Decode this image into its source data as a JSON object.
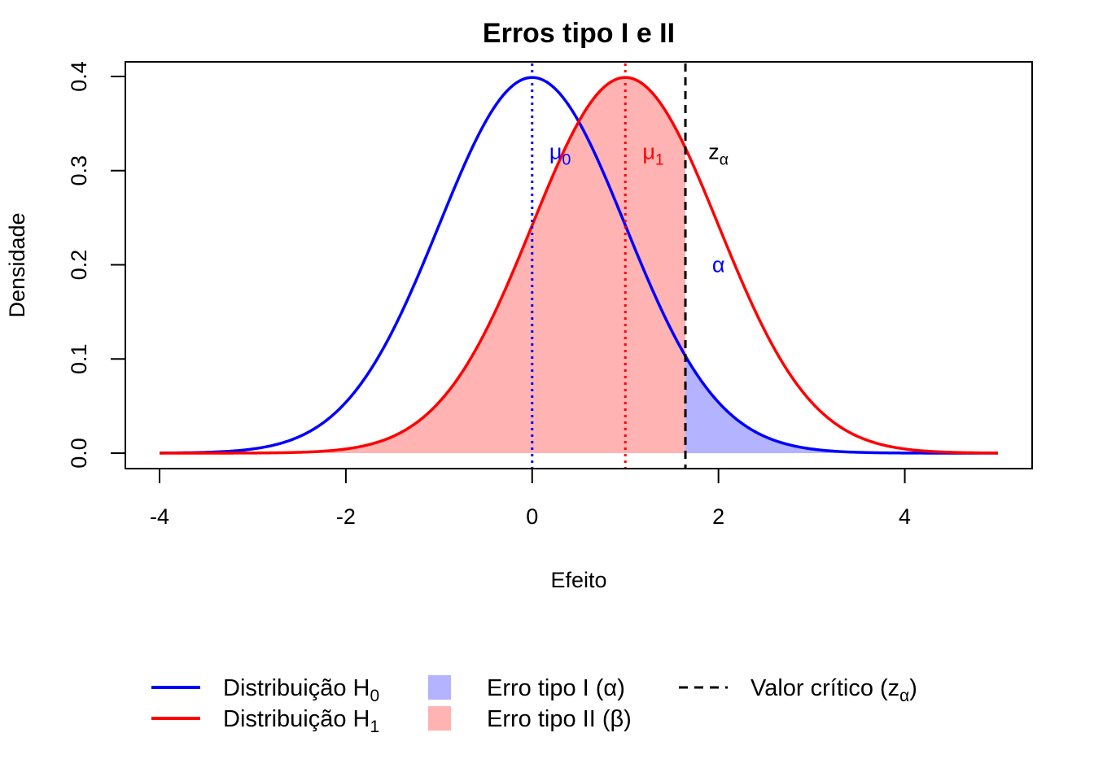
{
  "chart_data": {
    "type": "line",
    "title": "Erros tipo I e II",
    "xlabel": "Efeito",
    "ylabel": "Densidade",
    "xlim": [
      -4,
      5
    ],
    "ylim": [
      0,
      0.4
    ],
    "x_ticks": [
      {
        "value": -4,
        "label": "-4"
      },
      {
        "value": -2,
        "label": "-2"
      },
      {
        "value": 0,
        "label": "0"
      },
      {
        "value": 2,
        "label": "2"
      },
      {
        "value": 4,
        "label": "4"
      }
    ],
    "y_ticks": [
      {
        "value": 0.0,
        "label": "0.0"
      },
      {
        "value": 0.1,
        "label": "0.1"
      },
      {
        "value": 0.2,
        "label": "0.2"
      },
      {
        "value": 0.3,
        "label": "0.3"
      },
      {
        "value": 0.4,
        "label": "0.4"
      }
    ],
    "series": [
      {
        "name": "Distribuição H",
        "subscript": "0",
        "distribution": "normal",
        "mean": 0,
        "sd": 1,
        "color": "#0000ff"
      },
      {
        "name": "Distribuição H",
        "subscript": "1",
        "distribution": "normal",
        "mean": 1,
        "sd": 1,
        "color": "#ff0000"
      }
    ],
    "critical_value": 1.645,
    "shaded_regions": [
      {
        "name": "Erro tipo I (α)",
        "under": "H0",
        "from": 1.645,
        "to": 5,
        "color": "#b3b3ff"
      },
      {
        "name": "Erro tipo II (β)",
        "under": "H1",
        "from": -4,
        "to": 1.645,
        "color": "#ffb3b3"
      }
    ],
    "vertical_lines": [
      {
        "x": 0,
        "style": "dotted",
        "color": "#0000ff"
      },
      {
        "x": 1,
        "style": "dotted",
        "color": "#ff0000"
      },
      {
        "x": 1.645,
        "style": "dashed",
        "color": "#000000"
      }
    ],
    "annotations": [
      {
        "text": "μ",
        "sub": "0",
        "x": 0.3,
        "y": 0.32,
        "color": "#0000ff"
      },
      {
        "text": "μ",
        "sub": "1",
        "x": 1.3,
        "y": 0.32,
        "color": "#ff0000"
      },
      {
        "text": "z",
        "sub": "α",
        "x": 2.0,
        "y": 0.32,
        "color": "#000000"
      },
      {
        "text": "α",
        "sub": "",
        "x": 2.0,
        "y": 0.2,
        "color": "#0000ff"
      }
    ],
    "legend": {
      "placement": "bottom",
      "items": [
        {
          "label": "Distribuição H",
          "sub": "0",
          "symbol": "line",
          "color": "#0000ff"
        },
        {
          "label": "Distribuição H",
          "sub": "1",
          "symbol": "line",
          "color": "#ff0000"
        },
        {
          "label": "Erro tipo I (α)",
          "sub": "",
          "symbol": "box",
          "color": "#b3b3ff"
        },
        {
          "label": "Erro tipo II (β)",
          "sub": "",
          "symbol": "box",
          "color": "#ffb3b3"
        },
        {
          "label": "Valor crítico (z",
          "sub": "α",
          "suffix": ")",
          "symbol": "dashed",
          "color": "#000000"
        }
      ]
    }
  }
}
